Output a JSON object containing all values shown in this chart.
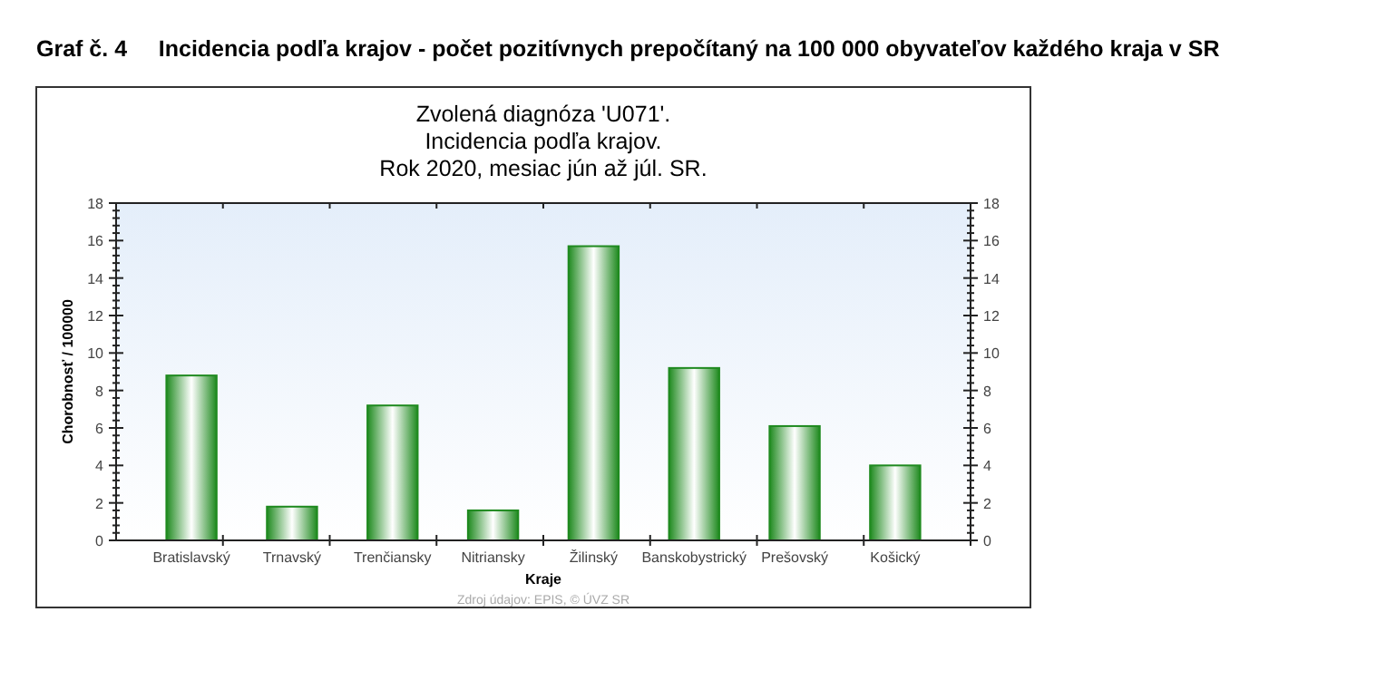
{
  "chart_data": {
    "type": "bar",
    "title": "Graf č. 4     Incidencia podľa krajov - počet pozitívnych prepočítaný na 100 000 obyvateľov každého kraja v SR",
    "subtitle": "Zvolená diagnóza 'U071'.\nIncidencia podľa krajov.\nRok 2020, mesiac jún až júl. SR.",
    "xlabel": "Kraje",
    "ylabel": "Chorobnosť / 100000",
    "categories": [
      "Bratislavský",
      "Trnavský",
      "Trenčiansky",
      "Nitriansky",
      "Žilinský",
      "Banskobystrický",
      "Prešovský",
      "Košický"
    ],
    "values": [
      8.8,
      1.8,
      7.2,
      1.6,
      15.7,
      9.2,
      6.1,
      4.0
    ],
    "color": "#1f8a1f",
    "ylim": [
      0,
      18
    ],
    "yticks": [
      0,
      2,
      4,
      6,
      8,
      10,
      12,
      14,
      16,
      18
    ],
    "y2lim": [
      0,
      18
    ],
    "y2ticks": [
      0,
      2,
      4,
      6,
      8,
      10,
      12,
      14,
      16,
      18
    ],
    "annotations": [
      "Zdroj údajov: EPIS, © ÚVZ SR"
    ]
  }
}
